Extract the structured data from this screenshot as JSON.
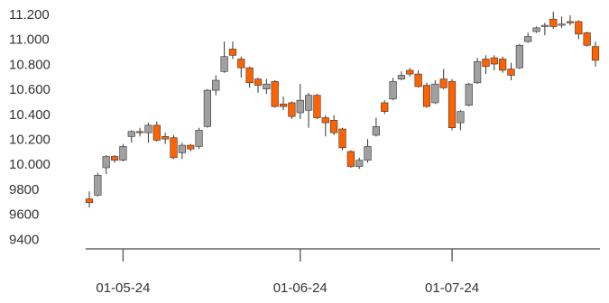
{
  "chart_data": {
    "type": "candlestick",
    "categories": [
      null,
      null,
      null,
      null,
      "01-05-24",
      null,
      null,
      null,
      null,
      null,
      null,
      null,
      null,
      null,
      null,
      null,
      null,
      null,
      null,
      null,
      null,
      null,
      null,
      null,
      null,
      "01-06-24",
      null,
      null,
      null,
      null,
      null,
      null,
      null,
      null,
      null,
      null,
      null,
      null,
      null,
      null,
      null,
      null,
      null,
      "01-07-24",
      null,
      null,
      null,
      null,
      null,
      null,
      null,
      null,
      null,
      null,
      null,
      null,
      null,
      null,
      null,
      null,
      null
    ],
    "open": [
      9730,
      9760,
      9980,
      10070,
      10040,
      10230,
      10270,
      10260,
      10320,
      10230,
      10220,
      10100,
      10160,
      10150,
      10310,
      10600,
      10750,
      10930,
      10850,
      10780,
      10690,
      10610,
      10670,
      10490,
      10500,
      10420,
      10440,
      10560,
      10380,
      10360,
      10290,
      10110,
      9990,
      10040,
      10240,
      10500,
      10530,
      10690,
      10760,
      10730,
      10640,
      10500,
      10690,
      10670,
      10340,
      10480,
      10660,
      10850,
      10860,
      10850,
      10770,
      10780,
      10990,
      11070,
      11110,
      11170,
      11120,
      11150,
      11150,
      11060,
      10950
    ],
    "high": [
      9790,
      9940,
      10080,
      10080,
      10170,
      10280,
      10300,
      10340,
      10350,
      10260,
      10240,
      10180,
      10170,
      10300,
      10610,
      10720,
      10990,
      10990,
      10870,
      10790,
      10700,
      10690,
      10680,
      10550,
      10510,
      10650,
      10580,
      10570,
      10400,
      10400,
      10300,
      10120,
      10060,
      10210,
      10380,
      10520,
      10700,
      10750,
      10780,
      10760,
      10660,
      10680,
      10770,
      10690,
      10440,
      10660,
      10860,
      10880,
      10880,
      10870,
      10820,
      10970,
      11060,
      11110,
      11140,
      11230,
      11190,
      11200,
      11160,
      11070,
      10990
    ],
    "low": [
      9660,
      9750,
      9930,
      10020,
      10030,
      10180,
      10230,
      10180,
      10190,
      10170,
      10050,
      10050,
      10110,
      10130,
      10300,
      10560,
      10740,
      10850,
      10700,
      10620,
      10580,
      10570,
      10460,
      10440,
      10370,
      10370,
      10300,
      10370,
      10230,
      10240,
      10120,
      9980,
      9970,
      10020,
      10230,
      10410,
      10520,
      10680,
      10710,
      10620,
      10460,
      10490,
      10610,
      10280,
      10280,
      10470,
      10650,
      10730,
      10760,
      10740,
      10680,
      10770,
      10980,
      11060,
      11040,
      11090,
      11100,
      11120,
      11010,
      10950,
      10790
    ],
    "close": [
      9700,
      9920,
      10070,
      10040,
      10150,
      10270,
      10260,
      10320,
      10200,
      10210,
      10060,
      10160,
      10130,
      10280,
      10600,
      10680,
      10870,
      10880,
      10780,
      10660,
      10640,
      10650,
      10470,
      10470,
      10390,
      10520,
      10560,
      10380,
      10340,
      10260,
      10140,
      9990,
      10040,
      10150,
      10310,
      10430,
      10670,
      10720,
      10730,
      10630,
      10470,
      10650,
      10620,
      10300,
      10430,
      10650,
      10830,
      10790,
      10810,
      10760,
      10720,
      10960,
      11030,
      11100,
      11120,
      11110,
      11130,
      11140,
      11050,
      10960,
      10840
    ],
    "up_color": "#a0a0a0",
    "down_color": "#ff6200",
    "ylim": [
      9330,
      11265
    ],
    "yticks": [
      9400,
      9600,
      9800,
      {
        "value": 10000,
        "label": "10.000"
      },
      {
        "value": 10200,
        "label": "10.200"
      },
      {
        "value": 10400,
        "label": "10.400"
      },
      {
        "value": 10600,
        "label": "10.600"
      },
      {
        "value": 10800,
        "label": "10.800"
      },
      {
        "value": 11000,
        "label": "11.000"
      },
      {
        "value": 11200,
        "label": "11.200"
      }
    ]
  }
}
